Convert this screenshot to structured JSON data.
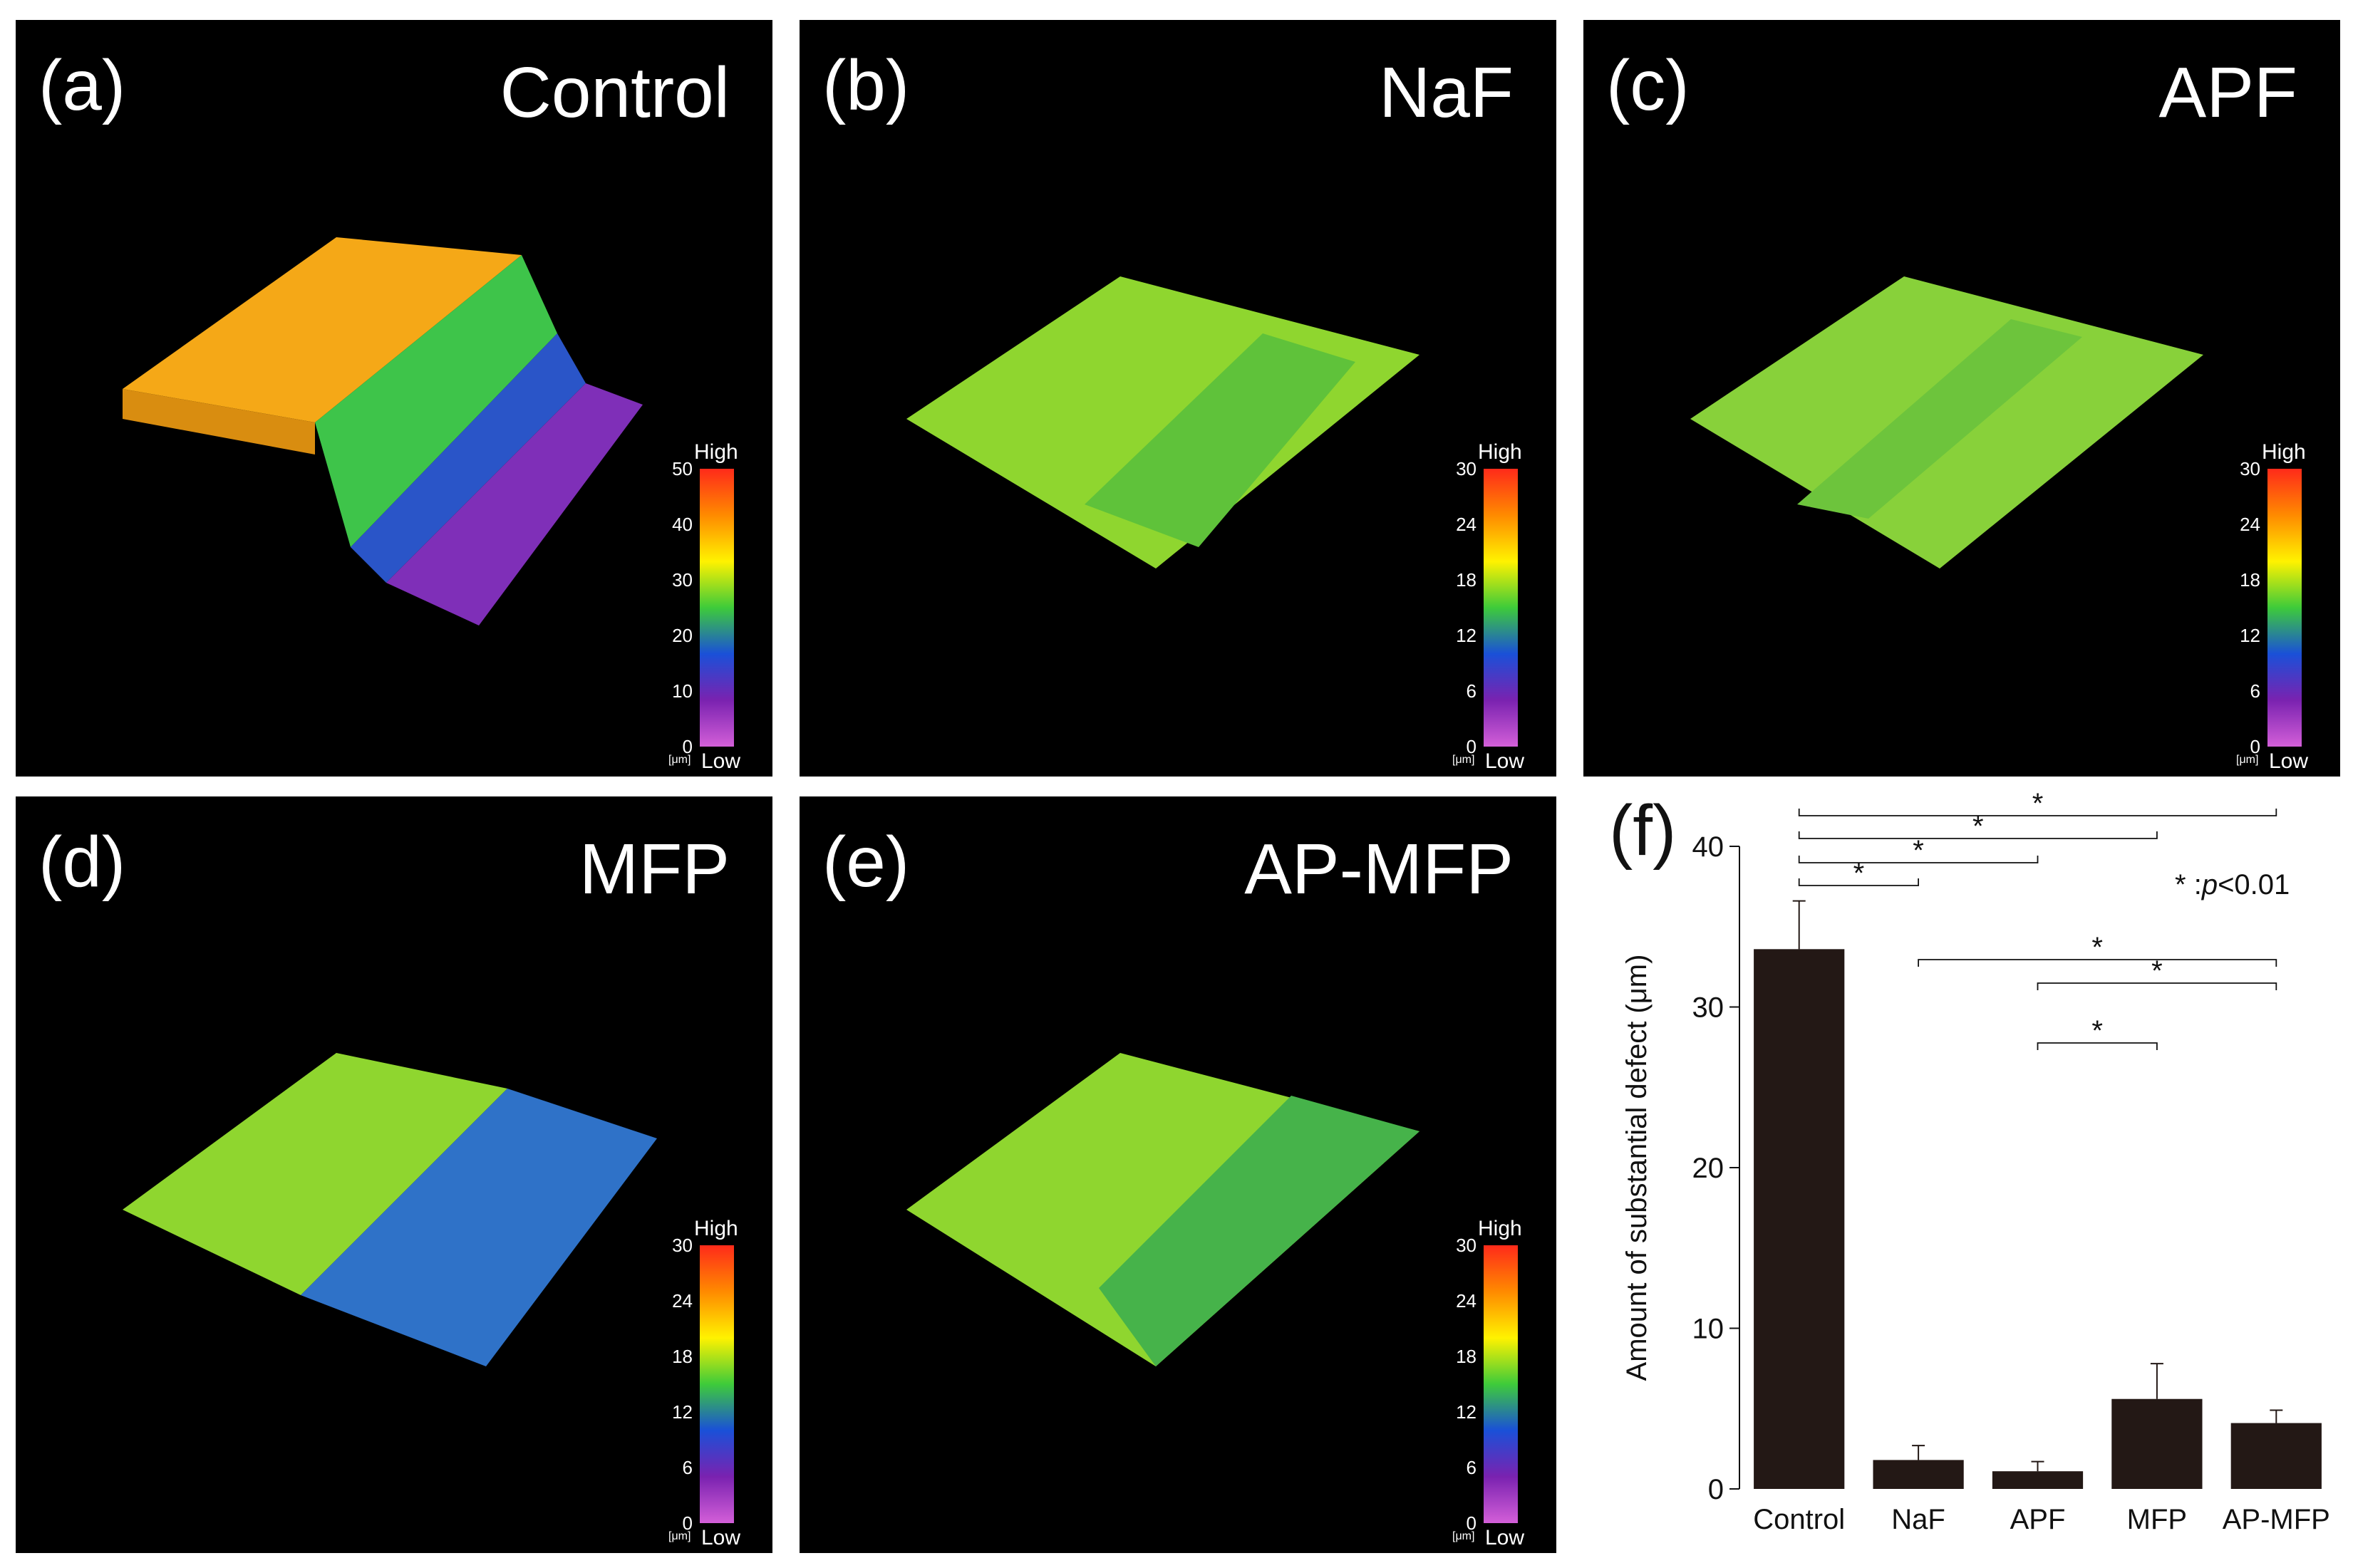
{
  "panels": [
    {
      "letter": "(a)",
      "title": "Control",
      "colorbar": {
        "high": "High",
        "low": "Low",
        "unit": "[μm]",
        "ticks": [
          "50",
          "40",
          "30",
          "20",
          "10",
          "0"
        ]
      }
    },
    {
      "letter": "(b)",
      "title": "NaF",
      "colorbar": {
        "high": "High",
        "low": "Low",
        "unit": "[μm]",
        "ticks": [
          "30",
          "24",
          "18",
          "12",
          "6",
          "0"
        ]
      }
    },
    {
      "letter": "(c)",
      "title": "APF",
      "colorbar": {
        "high": "High",
        "low": "Low",
        "unit": "[μm]",
        "ticks": [
          "30",
          "24",
          "18",
          "12",
          "6",
          "0"
        ]
      }
    },
    {
      "letter": "(d)",
      "title": "MFP",
      "colorbar": {
        "high": "High",
        "low": "Low",
        "unit": "[μm]",
        "ticks": [
          "30",
          "24",
          "18",
          "12",
          "6",
          "0"
        ]
      }
    },
    {
      "letter": "(e)",
      "title": "AP-MFP",
      "colorbar": {
        "high": "High",
        "low": "Low",
        "unit": "[μm]",
        "ticks": [
          "30",
          "24",
          "18",
          "12",
          "6",
          "0"
        ]
      }
    }
  ],
  "colors": {
    "bar": "#231815",
    "panel_bg": "#000000",
    "text": "#111111"
  },
  "chart_data": {
    "type": "bar",
    "panel_label": "(f)",
    "categories": [
      "Control",
      "NaF",
      "APF",
      "MFP",
      "AP-MFP"
    ],
    "values": [
      33.6,
      1.8,
      1.1,
      5.6,
      4.1
    ],
    "errors": [
      3.0,
      0.9,
      0.6,
      2.2,
      0.8
    ],
    "ylabel": "Amount of substantial defect (μm)",
    "xlabel": "",
    "ylim": [
      0,
      40
    ],
    "yticks": [
      "0",
      "10",
      "20",
      "30",
      "40"
    ],
    "significance": [
      {
        "from": "Control",
        "to": "NaF",
        "label": "*"
      },
      {
        "from": "Control",
        "to": "APF",
        "label": "*"
      },
      {
        "from": "Control",
        "to": "MFP",
        "label": "*"
      },
      {
        "from": "Control",
        "to": "AP-MFP",
        "label": "*"
      },
      {
        "from": "NaF",
        "to": "AP-MFP",
        "label": "*"
      },
      {
        "from": "APF",
        "to": "AP-MFP",
        "label": "*"
      },
      {
        "from": "APF",
        "to": "MFP",
        "label": "*"
      }
    ],
    "legend": {
      "symbol": "*",
      "colon": " :",
      "p": "p",
      "threshold": "<0.01"
    }
  }
}
